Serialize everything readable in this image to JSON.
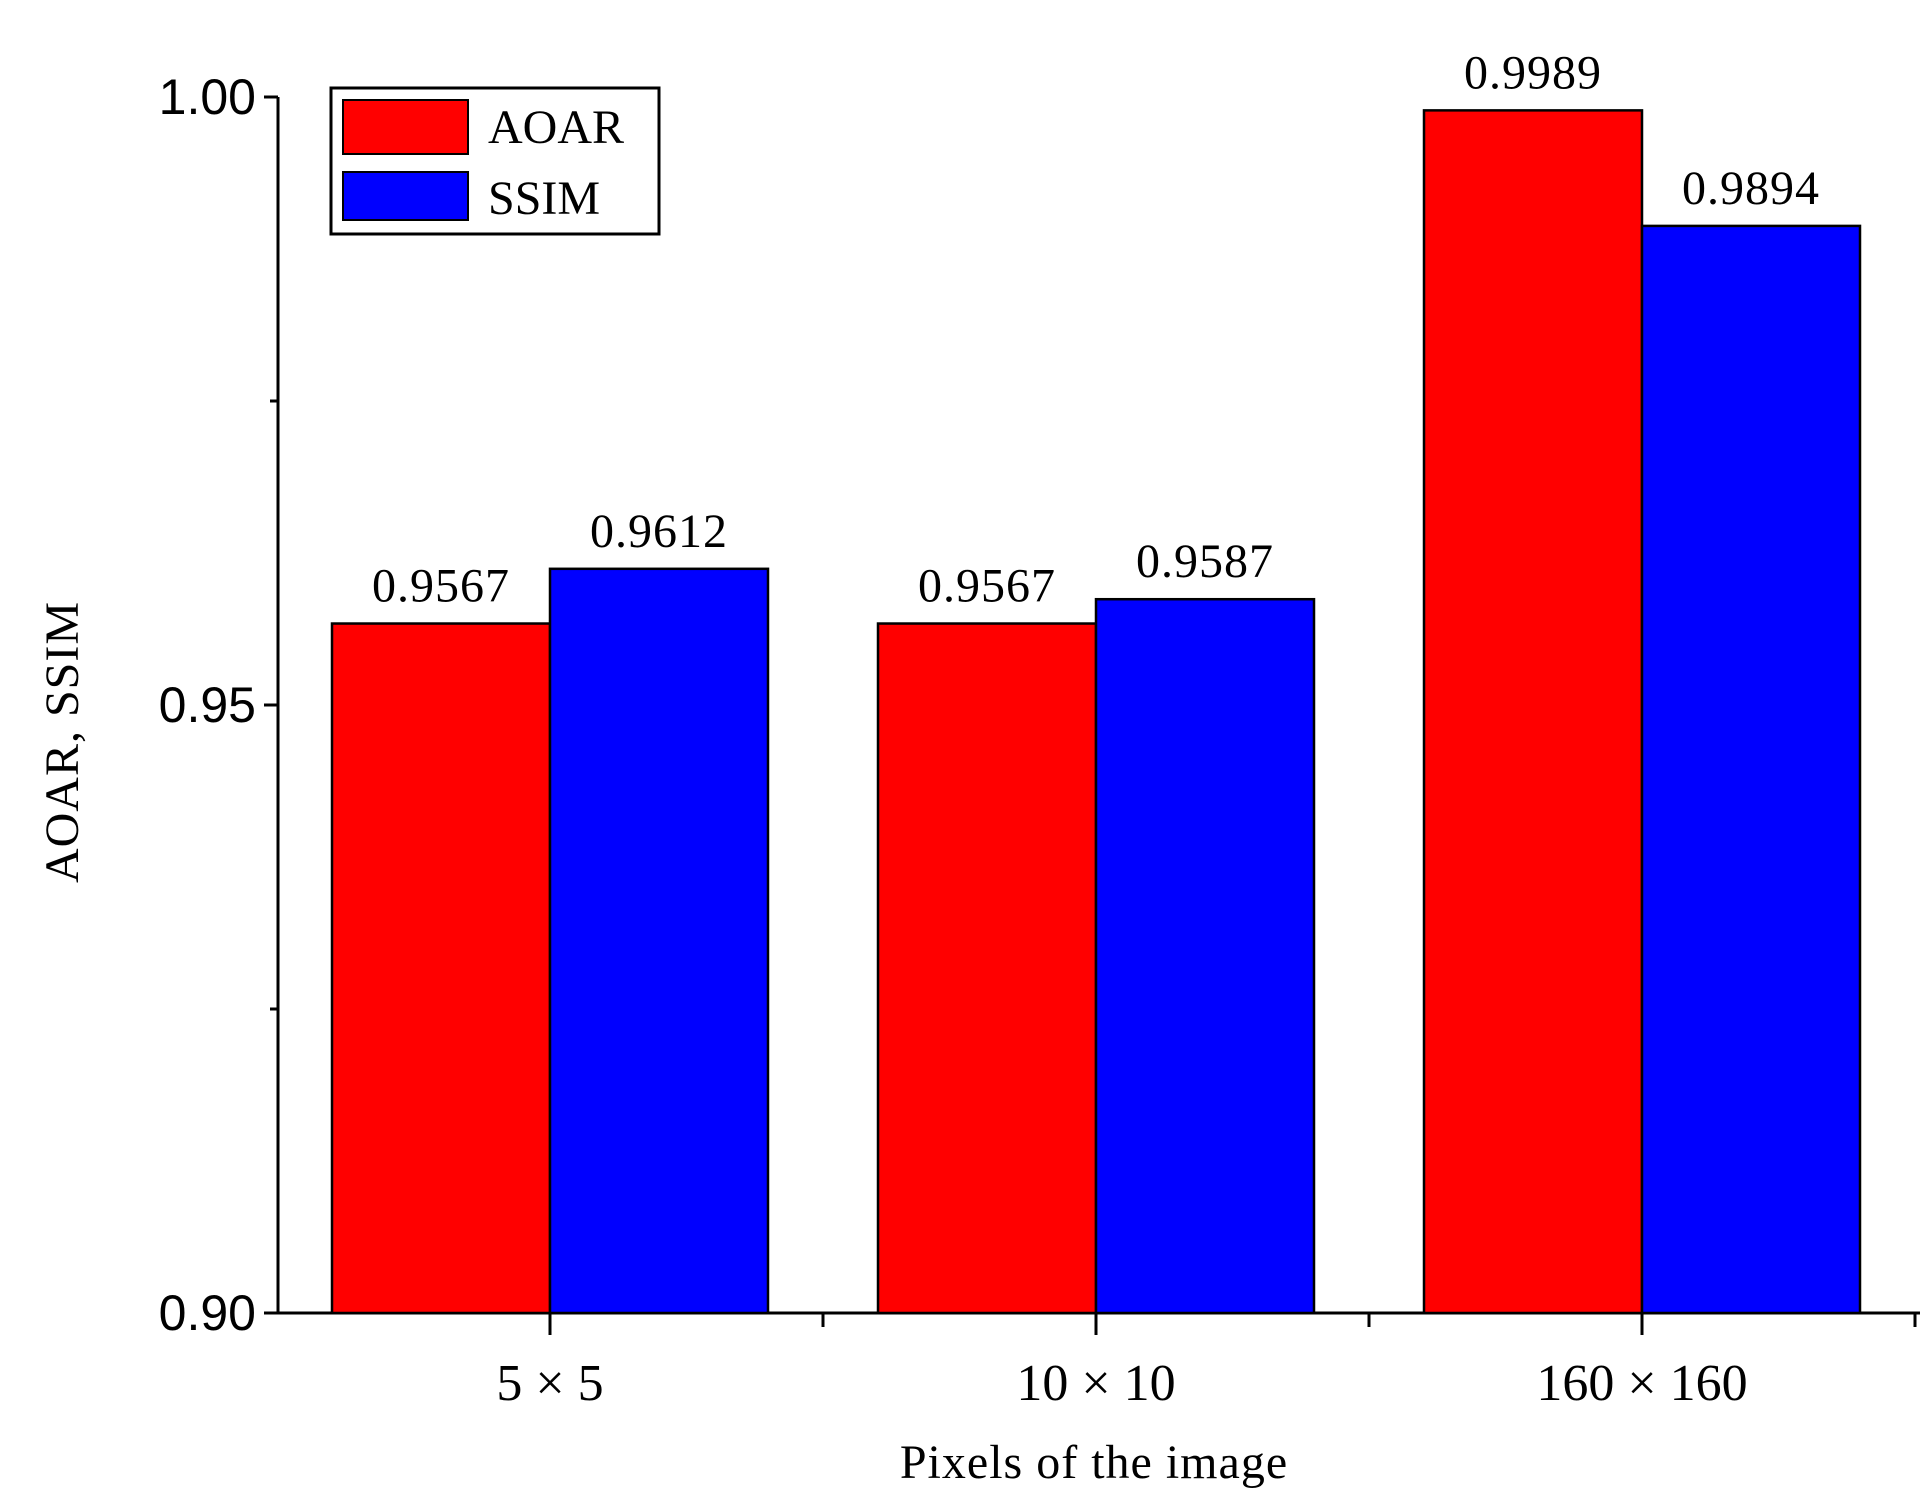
{
  "chart_data": {
    "type": "bar",
    "title": "",
    "xlabel": "Pixels of the image",
    "ylabel": "AOAR, SSIM",
    "categories": [
      "5 × 5",
      "10 × 10",
      "160 × 160"
    ],
    "series": [
      {
        "name": "AOAR",
        "color": "#ff0000",
        "values": [
          0.9567,
          0.9567,
          0.9989
        ],
        "labels": [
          "0.9567",
          "0.9567",
          "0.9989"
        ]
      },
      {
        "name": "SSIM",
        "color": "#0000ff",
        "values": [
          0.9612,
          0.9587,
          0.9894
        ],
        "labels": [
          "0.9612",
          "0.9587",
          "0.9894"
        ]
      }
    ],
    "ylim": [
      0.9,
      1.0
    ],
    "yticks": [
      0.9,
      0.95,
      1.0
    ],
    "ytick_labels": [
      "0.90",
      "0.95",
      "1.00"
    ],
    "grid": false,
    "legend_position": "top-left"
  }
}
